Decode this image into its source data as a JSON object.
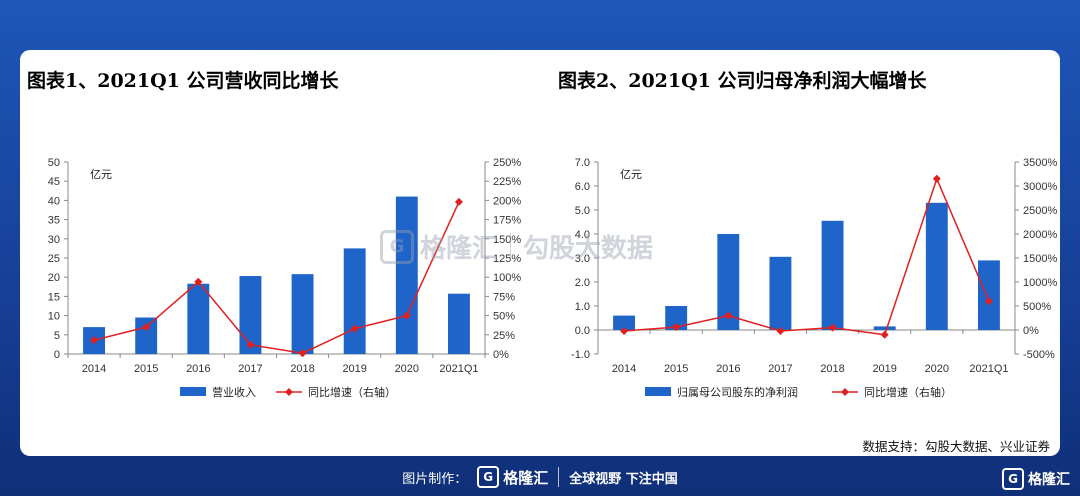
{
  "chart_data": [
    {
      "type": "bar",
      "title": "图表1、2021Q1 公司营收同比增长",
      "unit_label": "亿元",
      "categories": [
        "2014",
        "2015",
        "2016",
        "2017",
        "2018",
        "2019",
        "2020",
        "2021Q1"
      ],
      "series": [
        {
          "name": "营业收入",
          "type": "bar",
          "axis": "left",
          "values": [
            7,
            9.5,
            18.3,
            20.3,
            20.8,
            27.5,
            41,
            15.7
          ]
        },
        {
          "name": "同比增速（右轴）",
          "type": "line",
          "axis": "right",
          "values": [
            18,
            35,
            94,
            12,
            1,
            33,
            50,
            198
          ]
        }
      ],
      "ylim_left": [
        0,
        50
      ],
      "yticks_left": [
        "0",
        "5",
        "10",
        "15",
        "20",
        "25",
        "30",
        "35",
        "40",
        "45",
        "50"
      ],
      "ylim_right": [
        0,
        250
      ],
      "yticks_right": [
        "0%",
        "25%",
        "50%",
        "75%",
        "100%",
        "125%",
        "150%",
        "175%",
        "200%",
        "225%",
        "250%"
      ],
      "legend_position": "bottom",
      "colors": {
        "bar": "#1f64c8",
        "line": "#e02020"
      }
    },
    {
      "type": "bar",
      "title": "图表2、2021Q1 公司归母净利润大幅增长",
      "unit_label": "亿元",
      "categories": [
        "2014",
        "2015",
        "2016",
        "2017",
        "2018",
        "2019",
        "2020",
        "2021Q1"
      ],
      "series": [
        {
          "name": "归属母公司股东的净利润",
          "type": "bar",
          "axis": "left",
          "values": [
            0.6,
            1.0,
            4.0,
            3.05,
            4.55,
            0.15,
            5.3,
            2.9
          ]
        },
        {
          "name": "同比增速（右轴）",
          "type": "line",
          "axis": "right",
          "values": [
            -20,
            60,
            300,
            -20,
            50,
            -100,
            3150,
            600
          ]
        }
      ],
      "ylim_left": [
        -1.0,
        7.0
      ],
      "yticks_left": [
        "-1.0",
        "0.0",
        "1.0",
        "2.0",
        "3.0",
        "4.0",
        "5.0",
        "6.0",
        "7.0"
      ],
      "ylim_right": [
        -500,
        3500
      ],
      "yticks_right": [
        "-500%",
        "0%",
        "500%",
        "1000%",
        "1500%",
        "2000%",
        "2500%",
        "3000%",
        "3500%"
      ],
      "legend_position": "bottom",
      "colors": {
        "bar": "#1f64c8",
        "line": "#e02020"
      }
    }
  ],
  "source": "数据支持：勾股大数据、兴业证券",
  "watermark": {
    "brand": "格隆汇",
    "text": "勾股大数据"
  },
  "footer": {
    "made_by": "图片制作：",
    "brand": "格隆汇",
    "slogan": "全球视野 下注中国"
  },
  "corner_brand": "格隆汇"
}
